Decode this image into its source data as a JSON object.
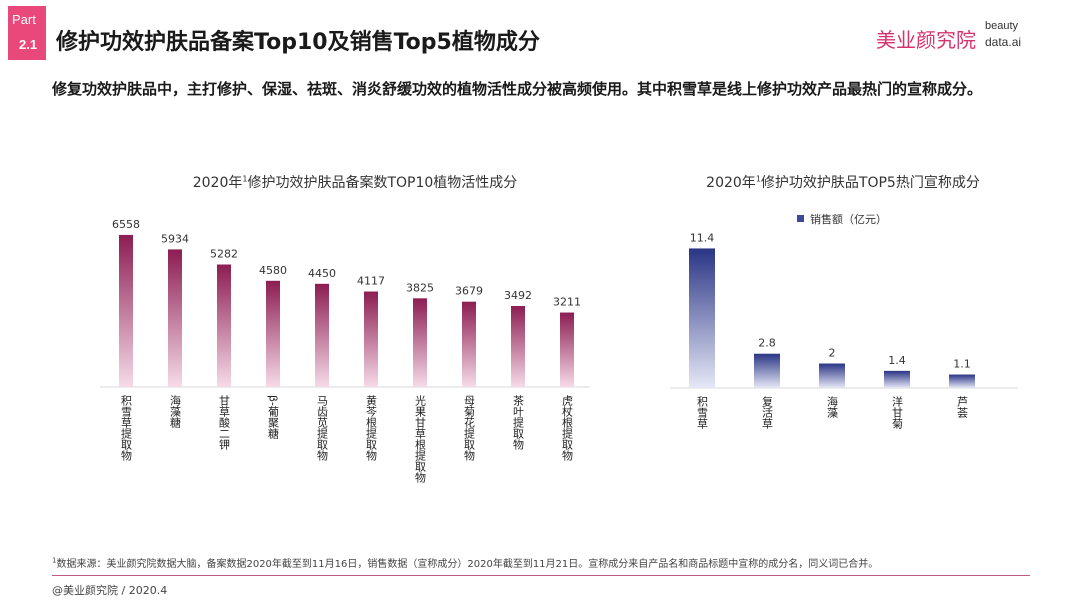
{
  "header": {
    "part_word": "Part",
    "part_number": "2.1",
    "title": "修护功效护肤品备案Top10及销售Top5植物成分",
    "logo_cn": "美业颜究院",
    "logo_en_line1": "beauty",
    "logo_en_line2": "data.ai"
  },
  "subtitle": "修复功效护肤品中，主打修护、保湿、祛斑、消炎舒缓功效的植物活性成分被高频使用。其中积雪草是线上修护功效产品最热门的宣称成分。",
  "chart_data": [
    {
      "type": "bar",
      "title_prefix": "2020年",
      "title_sup": "1",
      "title_rest": "修护功效护肤品备案数TOP10植物活性成分",
      "categories": [
        "积雪草提取物",
        "海藻糖",
        "甘草酸二钾",
        "β-葡聚糖",
        "马齿苋提取物",
        "黄芩根提取物",
        "光果甘草根提取物",
        "母菊花提取物",
        "茶叶提取物",
        "虎杖根提取物"
      ],
      "values": [
        6558,
        5934,
        5282,
        4580,
        4450,
        4117,
        3825,
        3679,
        3492,
        3211
      ],
      "ylim": [
        0,
        6900
      ],
      "colors": {
        "top": "#8c1d52",
        "bottom": "#f6dbe8"
      }
    },
    {
      "type": "bar",
      "title_prefix": "2020年",
      "title_sup": "1",
      "title_rest": "修护功效护肤品TOP5热门宣称成分",
      "categories": [
        "积雪草",
        "复活草",
        "海藻",
        "洋甘菊",
        "芦荟"
      ],
      "series": [
        {
          "name": "销售额（亿元）",
          "values": [
            11.4,
            2.8,
            2.0,
            1.4,
            1.1
          ]
        }
      ],
      "ylim": [
        0,
        11.6
      ],
      "legend": "top-center",
      "colors": {
        "top": "#2a3585",
        "bottom": "#e6e8f6",
        "legend": "#3b4a9a"
      }
    }
  ],
  "footnote": {
    "sup": "1",
    "text": "数据来源：美业颜究院数据大脑，备案数据2020年截至到11月16日，销售数据（宣称成分）2020年截至到11月21日。宣称成分来自产品名和商品标题中宣称的成分名，同义词已合并。"
  },
  "copyright": "@美业颜究院 / 2020.4"
}
